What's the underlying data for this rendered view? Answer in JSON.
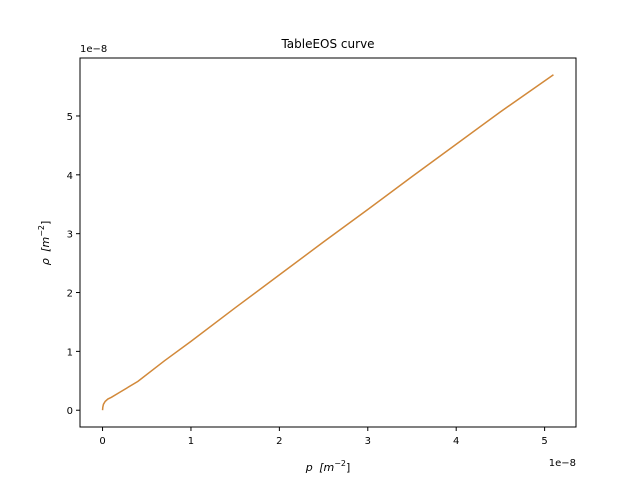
{
  "chart_data": {
    "type": "line",
    "title": "TableEOS curve",
    "xlabel": {
      "prefix": "p",
      "unit": "[m",
      "exp": "−2",
      "suffix": "]"
    },
    "ylabel": {
      "prefix": "ρ",
      "unit": "[m",
      "exp": "−2",
      "suffix": "]"
    },
    "x_offset_text": "1e−8",
    "y_offset_text": "1e−8",
    "xlim": [
      -0.255,
      5.355
    ],
    "ylim": [
      -0.285,
      5.985
    ],
    "x_scale_multiplier": 1e-08,
    "y_scale_multiplier": 1e-08,
    "xticks": [
      0,
      1,
      2,
      3,
      4,
      5
    ],
    "yticks": [
      0,
      1,
      2,
      3,
      4,
      5
    ],
    "xtick_labels": [
      "0",
      "1",
      "2",
      "3",
      "4",
      "5"
    ],
    "ytick_labels": [
      "0",
      "1",
      "2",
      "3",
      "4",
      "5"
    ],
    "grid": false,
    "series": [
      {
        "color": "#d2893a",
        "x": [
          0.0,
          0.003,
          0.01,
          0.03,
          0.06,
          0.1,
          0.2,
          0.4,
          0.7,
          1.0,
          1.5,
          2.0,
          2.5,
          3.0,
          3.5,
          4.0,
          4.5,
          5.1
        ],
        "y": [
          0.0,
          0.05,
          0.1,
          0.15,
          0.19,
          0.22,
          0.31,
          0.49,
          0.84,
          1.17,
          1.74,
          2.3,
          2.86,
          3.41,
          3.97,
          4.52,
          5.07,
          5.7
        ]
      }
    ]
  }
}
